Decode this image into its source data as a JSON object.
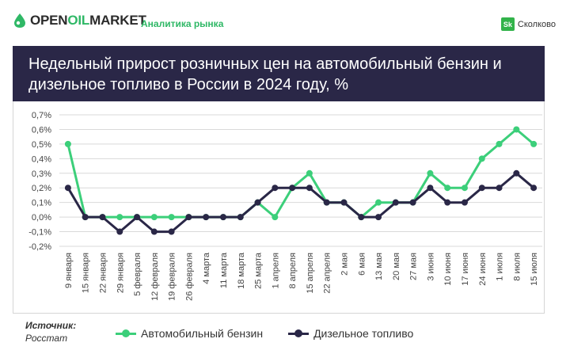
{
  "header": {
    "logo_part1": "OPEN",
    "logo_part2": "OIL",
    "logo_part3": "MARKET",
    "tagline": "Аналитика рынка",
    "partner_badge": "Sk",
    "partner_name": "Сколково"
  },
  "colors": {
    "gasoline": "#3ccf7a",
    "diesel": "#2a2747",
    "title_band": "#2a2747",
    "brand_green": "#2fb866"
  },
  "source": {
    "label": "Источник:",
    "value": "Росстат"
  },
  "chart_data": {
    "type": "line",
    "title": "Недельный прирост розничных цен на автомобильный бензин и дизельное топливо в России в 2024 году, %",
    "categories": [
      "9 января",
      "15 января",
      "22 января",
      "29 января",
      "5 февраля",
      "12 февраля",
      "19 февраля",
      "26 февраля",
      "4 марта",
      "11 марта",
      "18 марта",
      "25 марта",
      "1 апреля",
      "8 апреля",
      "15 апреля",
      "22 апреля",
      "2 мая",
      "6 мая",
      "13 мая",
      "20 мая",
      "27 мая",
      "3 июня",
      "10 июня",
      "17 июня",
      "24 июня",
      "1 июля",
      "8 июля",
      "15 июля"
    ],
    "y_ticks": [
      "-0,2%",
      "-0,1%",
      "0,0%",
      "0,1%",
      "0,2%",
      "0,3%",
      "0,4%",
      "0,5%",
      "0,6%",
      "0,7%"
    ],
    "ylim": [
      -0.2,
      0.7
    ],
    "grid": true,
    "legend_position": "bottom",
    "series": [
      {
        "name": "Автомобильный бензин",
        "values": [
          0.5,
          0.0,
          0.0,
          0.0,
          0.0,
          0.0,
          0.0,
          0.0,
          0.0,
          0.0,
          0.0,
          0.1,
          0.0,
          0.2,
          0.3,
          0.1,
          0.1,
          0.0,
          0.1,
          0.1,
          0.1,
          0.3,
          0.2,
          0.2,
          0.4,
          0.5,
          0.6,
          0.5
        ]
      },
      {
        "name": "Дизельное топливо",
        "values": [
          0.2,
          0.0,
          0.0,
          -0.1,
          0.0,
          -0.1,
          -0.1,
          0.0,
          0.0,
          0.0,
          0.0,
          0.1,
          0.2,
          0.2,
          0.2,
          0.1,
          0.1,
          0.0,
          0.0,
          0.1,
          0.1,
          0.2,
          0.1,
          0.1,
          0.2,
          0.2,
          0.3,
          0.2
        ]
      }
    ]
  }
}
